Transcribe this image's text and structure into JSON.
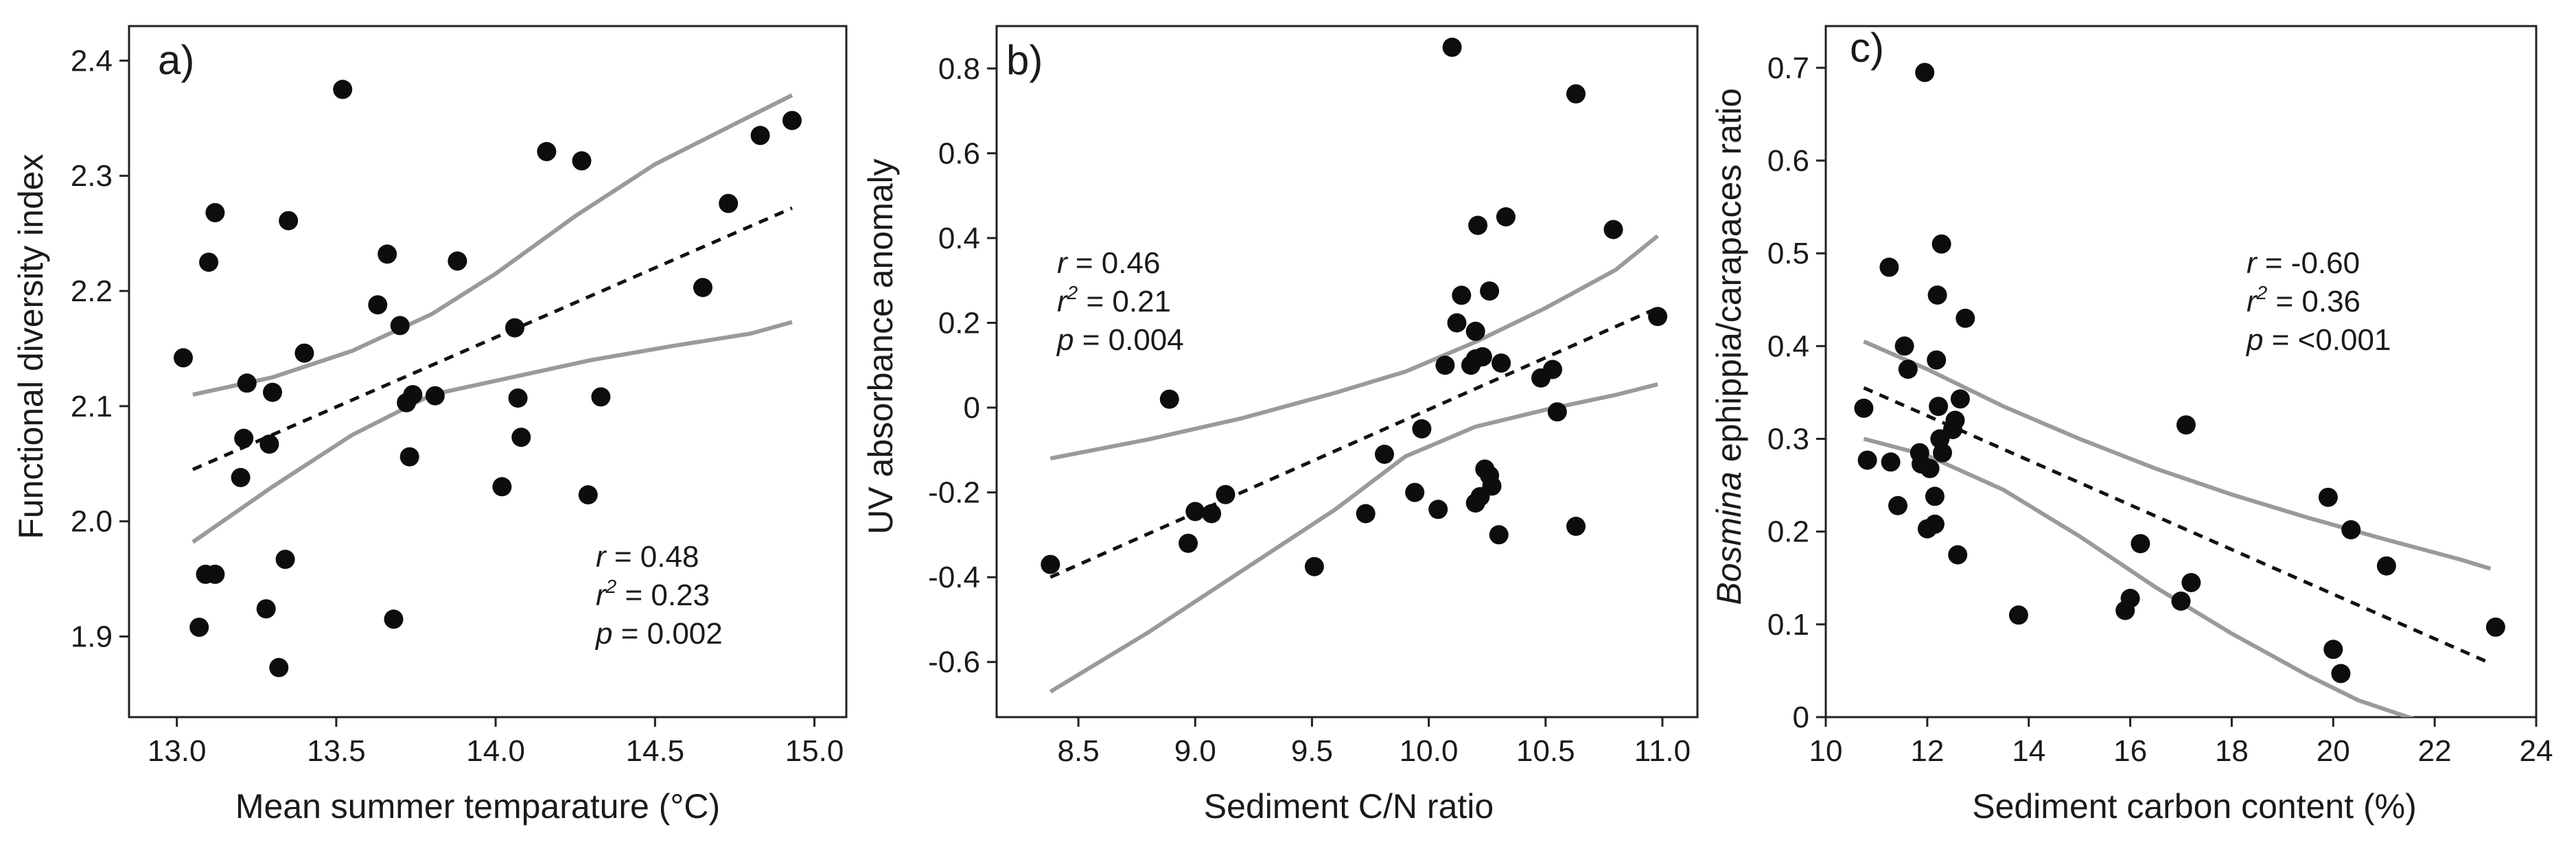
{
  "chart_data": [
    {
      "type": "scatter",
      "panel": "a)",
      "xlabel": "Mean summer temparature (°C)",
      "ylabel": "Functional diversity index",
      "xlim": [
        12.85,
        15.1
      ],
      "ylim": [
        1.83,
        2.43
      ],
      "xticks": [
        13.0,
        13.5,
        14.0,
        14.5,
        15.0
      ],
      "xtick_labels": [
        "13.0",
        "13.5",
        "14.0",
        "14.5",
        "15.0"
      ],
      "yticks": [
        1.9,
        2.0,
        2.1,
        2.2,
        2.3,
        2.4
      ],
      "ytick_labels": [
        "1.9",
        "2.0",
        "2.1",
        "2.2",
        "2.3",
        "2.4"
      ],
      "stats": {
        "r_label": "r",
        "r": "= 0.48",
        "r2_label": "r",
        "r2_sup": "2",
        "r2": "= 0.23",
        "p_label": "p",
        "p": "= 0.002"
      },
      "points": [
        [
          13.02,
          2.142
        ],
        [
          13.07,
          1.908
        ],
        [
          13.09,
          1.954
        ],
        [
          13.1,
          2.225
        ],
        [
          13.12,
          2.268
        ],
        [
          13.12,
          1.954
        ],
        [
          13.2,
          2.038
        ],
        [
          13.21,
          2.072
        ],
        [
          13.22,
          2.12
        ],
        [
          13.28,
          1.924
        ],
        [
          13.29,
          2.067
        ],
        [
          13.3,
          2.112
        ],
        [
          13.32,
          1.873
        ],
        [
          13.34,
          1.967
        ],
        [
          13.35,
          2.261
        ],
        [
          13.4,
          2.146
        ],
        [
          13.52,
          2.375
        ],
        [
          13.63,
          2.188
        ],
        [
          13.66,
          2.232
        ],
        [
          13.68,
          1.915
        ],
        [
          13.7,
          2.17
        ],
        [
          13.72,
          2.103
        ],
        [
          13.73,
          2.056
        ],
        [
          13.74,
          2.11
        ],
        [
          13.81,
          2.109
        ],
        [
          13.88,
          2.226
        ],
        [
          14.02,
          2.03
        ],
        [
          14.06,
          2.168
        ],
        [
          14.07,
          2.107
        ],
        [
          14.08,
          2.073
        ],
        [
          14.16,
          2.321
        ],
        [
          14.27,
          2.313
        ],
        [
          14.29,
          2.023
        ],
        [
          14.33,
          2.108
        ],
        [
          14.65,
          2.203
        ],
        [
          14.73,
          2.276
        ],
        [
          14.83,
          2.335
        ],
        [
          14.93,
          2.348
        ]
      ],
      "fit_line": [
        [
          13.05,
          2.045
        ],
        [
          14.93,
          2.272
        ]
      ],
      "ci_upper": [
        [
          13.05,
          2.11
        ],
        [
          13.3,
          2.125
        ],
        [
          13.55,
          2.148
        ],
        [
          13.8,
          2.18
        ],
        [
          14.0,
          2.215
        ],
        [
          14.25,
          2.265
        ],
        [
          14.5,
          2.31
        ],
        [
          14.75,
          2.345
        ],
        [
          14.93,
          2.37
        ]
      ],
      "ci_lower": [
        [
          13.05,
          1.982
        ],
        [
          13.3,
          2.03
        ],
        [
          13.55,
          2.075
        ],
        [
          13.8,
          2.11
        ],
        [
          14.05,
          2.125
        ],
        [
          14.3,
          2.14
        ],
        [
          14.55,
          2.152
        ],
        [
          14.8,
          2.163
        ],
        [
          14.93,
          2.173
        ]
      ]
    },
    {
      "type": "scatter",
      "panel": "b)",
      "xlabel": "Sediment C/N ratio",
      "ylabel": "UV absorbance anomaly",
      "xlim": [
        8.15,
        11.15
      ],
      "ylim": [
        -0.73,
        0.9
      ],
      "xticks": [
        8.5,
        9.0,
        9.5,
        10.0,
        10.5,
        11.0
      ],
      "xtick_labels": [
        "8.5",
        "9.0",
        "9.5",
        "10.0",
        "10.5",
        "11.0"
      ],
      "yticks": [
        -0.6,
        -0.4,
        -0.2,
        0,
        0.2,
        0.4,
        0.6,
        0.8
      ],
      "ytick_labels": [
        "-0.6",
        "-0.4",
        "-0.2",
        "0",
        "0.2",
        "0.4",
        "0.6",
        "0.8"
      ],
      "stats": {
        "r_label": "r",
        "r": "= 0.46",
        "r2_label": "r",
        "r2_sup": "2",
        "r2": "= 0.21",
        "p_label": "p",
        "p": "= 0.004"
      },
      "points": [
        [
          8.38,
          -0.37
        ],
        [
          8.89,
          0.02
        ],
        [
          8.97,
          -0.32
        ],
        [
          9.0,
          -0.245
        ],
        [
          9.07,
          -0.25
        ],
        [
          9.13,
          -0.205
        ],
        [
          9.51,
          -0.375
        ],
        [
          9.73,
          -0.25
        ],
        [
          9.81,
          -0.11
        ],
        [
          9.94,
          -0.2
        ],
        [
          9.97,
          -0.05
        ],
        [
          10.04,
          -0.24
        ],
        [
          10.07,
          0.1
        ],
        [
          10.1,
          0.85
        ],
        [
          10.12,
          0.2
        ],
        [
          10.14,
          0.265
        ],
        [
          10.18,
          0.1
        ],
        [
          10.2,
          0.115
        ],
        [
          10.2,
          -0.225
        ],
        [
          10.2,
          0.18
        ],
        [
          10.21,
          0.43
        ],
        [
          10.22,
          -0.21
        ],
        [
          10.23,
          0.12
        ],
        [
          10.24,
          -0.145
        ],
        [
          10.26,
          0.275
        ],
        [
          10.26,
          -0.16
        ],
        [
          10.27,
          -0.185
        ],
        [
          10.3,
          -0.3
        ],
        [
          10.31,
          0.105
        ],
        [
          10.33,
          0.45
        ],
        [
          10.48,
          0.07
        ],
        [
          10.53,
          0.09
        ],
        [
          10.55,
          -0.01
        ],
        [
          10.63,
          -0.28
        ],
        [
          10.63,
          0.74
        ],
        [
          10.79,
          0.42
        ],
        [
          10.98,
          0.215
        ]
      ],
      "fit_line": [
        [
          8.38,
          -0.4
        ],
        [
          10.98,
          0.235
        ]
      ],
      "ci_upper": [
        [
          8.38,
          -0.12
        ],
        [
          8.8,
          -0.075
        ],
        [
          9.2,
          -0.025
        ],
        [
          9.6,
          0.035
        ],
        [
          9.9,
          0.085
        ],
        [
          10.2,
          0.155
        ],
        [
          10.5,
          0.235
        ],
        [
          10.8,
          0.325
        ],
        [
          10.98,
          0.405
        ]
      ],
      "ci_lower": [
        [
          8.38,
          -0.67
        ],
        [
          8.8,
          -0.53
        ],
        [
          9.2,
          -0.385
        ],
        [
          9.6,
          -0.24
        ],
        [
          9.9,
          -0.115
        ],
        [
          10.2,
          -0.045
        ],
        [
          10.5,
          -0.005
        ],
        [
          10.8,
          0.03
        ],
        [
          10.98,
          0.055
        ]
      ]
    },
    {
      "type": "scatter",
      "panel": "c)",
      "xlabel": "Sediment carbon content (%)",
      "ylabel_italic": "Bosmina",
      "ylabel": "ephippia/carapaces ratio",
      "xlim": [
        10,
        24
      ],
      "ylim": [
        0,
        0.745
      ],
      "xticks": [
        10,
        12,
        14,
        16,
        18,
        20,
        22,
        24
      ],
      "xtick_labels": [
        "10",
        "12",
        "14",
        "16",
        "18",
        "20",
        "22",
        "24"
      ],
      "yticks": [
        0,
        0.1,
        0.2,
        0.3,
        0.4,
        0.5,
        0.6,
        0.7
      ],
      "ytick_labels": [
        "0",
        "0.1",
        "0.2",
        "0.3",
        "0.4",
        "0.5",
        "0.6",
        "0.7"
      ],
      "stats": {
        "r_label": "r",
        "r": "= -0.60",
        "r2_label": "r",
        "r2_sup": "2",
        "r2": "= 0.36",
        "p_label": "p",
        "p": "= <0.001"
      },
      "points": [
        [
          10.75,
          0.333
        ],
        [
          10.82,
          0.277
        ],
        [
          11.25,
          0.485
        ],
        [
          11.28,
          0.275
        ],
        [
          11.42,
          0.228
        ],
        [
          11.55,
          0.4
        ],
        [
          11.62,
          0.375
        ],
        [
          11.85,
          0.285
        ],
        [
          11.88,
          0.273
        ],
        [
          11.95,
          0.695
        ],
        [
          12.0,
          0.203
        ],
        [
          12.05,
          0.268
        ],
        [
          12.15,
          0.208
        ],
        [
          12.15,
          0.238
        ],
        [
          12.18,
          0.385
        ],
        [
          12.2,
          0.455
        ],
        [
          12.22,
          0.335
        ],
        [
          12.25,
          0.3
        ],
        [
          12.28,
          0.51
        ],
        [
          12.3,
          0.285
        ],
        [
          12.5,
          0.31
        ],
        [
          12.55,
          0.32
        ],
        [
          12.6,
          0.175
        ],
        [
          12.65,
          0.343
        ],
        [
          12.75,
          0.43
        ],
        [
          13.8,
          0.11
        ],
        [
          15.9,
          0.115
        ],
        [
          16.0,
          0.128
        ],
        [
          16.2,
          0.187
        ],
        [
          17.0,
          0.125
        ],
        [
          17.1,
          0.315
        ],
        [
          17.2,
          0.145
        ],
        [
          19.9,
          0.237
        ],
        [
          20.0,
          0.073
        ],
        [
          20.15,
          0.047
        ],
        [
          20.35,
          0.202
        ],
        [
          21.05,
          0.163
        ],
        [
          23.2,
          0.097
        ]
      ],
      "fit_line": [
        [
          10.75,
          0.355
        ],
        [
          23.1,
          0.058
        ]
      ],
      "ci_upper": [
        [
          10.75,
          0.405
        ],
        [
          12.0,
          0.375
        ],
        [
          13.5,
          0.335
        ],
        [
          15.0,
          0.3
        ],
        [
          16.5,
          0.268
        ],
        [
          18.0,
          0.24
        ],
        [
          19.5,
          0.215
        ],
        [
          21.0,
          0.192
        ],
        [
          22.5,
          0.17
        ],
        [
          23.1,
          0.16
        ]
      ],
      "ci_lower": [
        [
          10.75,
          0.3
        ],
        [
          12.0,
          0.282
        ],
        [
          13.5,
          0.245
        ],
        [
          15.0,
          0.195
        ],
        [
          16.5,
          0.14
        ],
        [
          18.0,
          0.09
        ],
        [
          19.5,
          0.045
        ],
        [
          20.5,
          0.018
        ],
        [
          21.75,
          -0.005
        ]
      ]
    }
  ]
}
